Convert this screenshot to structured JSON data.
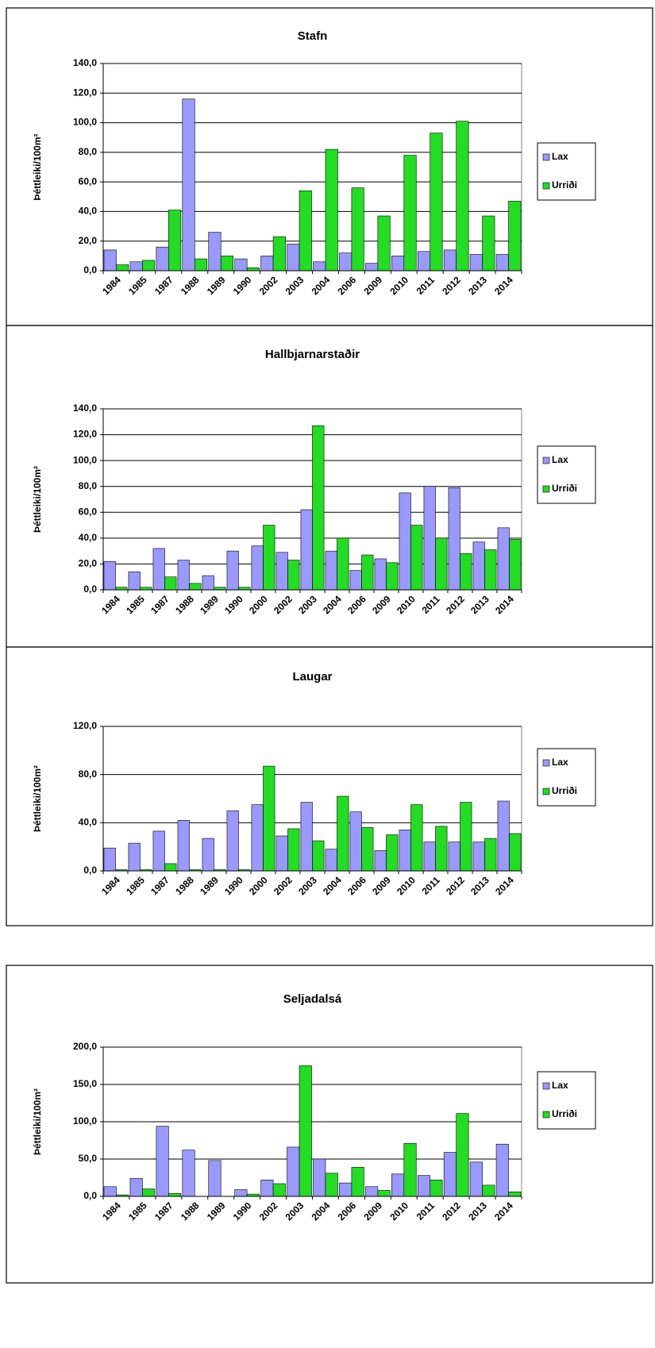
{
  "chart_data": [
    {
      "type": "bar",
      "title": "Stafn",
      "y_label": "Þéttleiki/100m²",
      "categories": [
        "1984",
        "1985",
        "1987",
        "1988",
        "1989",
        "1990",
        "2002",
        "2003",
        "2004",
        "2006",
        "2009",
        "2010",
        "2011",
        "2012",
        "2013",
        "2014"
      ],
      "series": [
        {
          "name": "Lax",
          "color": "#9999ff",
          "values": [
            14,
            6,
            16,
            116,
            26,
            8,
            10,
            18,
            6,
            12,
            5,
            10,
            13,
            14,
            11,
            11
          ]
        },
        {
          "name": "Urriði",
          "color": "#22dd22",
          "values": [
            4,
            7,
            41,
            8,
            10,
            2,
            23,
            54,
            82,
            56,
            37,
            78,
            93,
            101,
            37,
            47
          ]
        }
      ],
      "ylim": [
        0,
        140
      ],
      "yticks": [
        {
          "value": 0,
          "label": "0,0"
        },
        {
          "value": 20,
          "label": "20,0"
        },
        {
          "value": 40,
          "label": "40,0"
        },
        {
          "value": 60,
          "label": "60,0"
        },
        {
          "value": 80,
          "label": "80,0"
        },
        {
          "value": 100,
          "label": "100,0"
        },
        {
          "value": 120,
          "label": "120,0"
        },
        {
          "value": 140,
          "label": "140,0"
        }
      ],
      "grid": true,
      "legend": "right"
    },
    {
      "type": "bar",
      "title": "Hallbjarnarstaðir",
      "y_label": "Þéttleiki/100m²",
      "categories": [
        "1984",
        "1985",
        "1987",
        "1988",
        "1989",
        "1990",
        "2000",
        "2002",
        "2003",
        "2004",
        "2006",
        "2009",
        "2010",
        "2011",
        "2012",
        "2013",
        "2014"
      ],
      "series": [
        {
          "name": "Lax",
          "color": "#9999ff",
          "values": [
            22,
            14,
            32,
            23,
            11,
            30,
            34,
            29,
            62,
            30,
            15,
            24,
            75,
            80,
            79,
            37,
            48
          ]
        },
        {
          "name": "Urriði",
          "color": "#22dd22",
          "values": [
            2,
            2,
            10,
            5,
            2,
            2,
            50,
            23,
            127,
            40,
            27,
            21,
            50,
            40,
            28,
            31,
            39
          ]
        }
      ],
      "ylim": [
        0,
        140
      ],
      "yticks": [
        {
          "value": 0,
          "label": "0,0"
        },
        {
          "value": 20,
          "label": "20,0"
        },
        {
          "value": 40,
          "label": "40,0"
        },
        {
          "value": 60,
          "label": "60,0"
        },
        {
          "value": 80,
          "label": "80,0"
        },
        {
          "value": 100,
          "label": "100,0"
        },
        {
          "value": 120,
          "label": "120,0"
        },
        {
          "value": 140,
          "label": "140,0"
        }
      ],
      "grid": true,
      "legend": "right"
    },
    {
      "type": "bar",
      "title": "Laugar",
      "y_label": "Þéttleiki/100m²",
      "categories": [
        "1984",
        "1985",
        "1987",
        "1988",
        "1989",
        "1990",
        "2000",
        "2002",
        "2003",
        "2004",
        "2006",
        "2009",
        "2010",
        "2011",
        "2012",
        "2013",
        "2014"
      ],
      "series": [
        {
          "name": "Lax",
          "color": "#9999ff",
          "values": [
            19,
            23,
            33,
            42,
            27,
            50,
            55,
            29,
            57,
            18,
            49,
            17,
            34,
            24,
            24,
            24,
            58
          ]
        },
        {
          "name": "Urriði",
          "color": "#22dd22",
          "values": [
            1,
            1,
            6,
            1,
            1,
            1,
            87,
            35,
            25,
            62,
            36,
            30,
            55,
            37,
            57,
            27,
            31
          ]
        }
      ],
      "ylim": [
        0,
        120
      ],
      "yticks": [
        {
          "value": 0,
          "label": "0,0"
        },
        {
          "value": 40,
          "label": "40,0"
        },
        {
          "value": 80,
          "label": "80,0"
        },
        {
          "value": 120,
          "label": "120,0"
        }
      ],
      "grid": true,
      "legend": "right"
    },
    {
      "type": "bar",
      "title": "Seljadalsá",
      "y_label": "Þéttleiki/100m²",
      "categories": [
        "1984",
        "1985",
        "1987",
        "1988",
        "1989",
        "1990",
        "2002",
        "2003",
        "2004",
        "2006",
        "2009",
        "2010",
        "2011",
        "2012",
        "2013",
        "2014"
      ],
      "series": [
        {
          "name": "Lax",
          "color": "#9999ff",
          "values": [
            13,
            24,
            94,
            62,
            48,
            9,
            22,
            66,
            50,
            18,
            13,
            30,
            28,
            59,
            46,
            70
          ]
        },
        {
          "name": "Urriði",
          "color": "#22dd22",
          "values": [
            2,
            10,
            4,
            0,
            0,
            3,
            17,
            175,
            31,
            39,
            8,
            71,
            22,
            111,
            15,
            6
          ]
        }
      ],
      "ylim": [
        0,
        200
      ],
      "yticks": [
        {
          "value": 0,
          "label": "0,0"
        },
        {
          "value": 50,
          "label": "50,0"
        },
        {
          "value": 100,
          "label": "100,0"
        },
        {
          "value": 150,
          "label": "150,0"
        },
        {
          "value": 200,
          "label": "200,0"
        }
      ],
      "grid": true,
      "legend": "right"
    }
  ]
}
